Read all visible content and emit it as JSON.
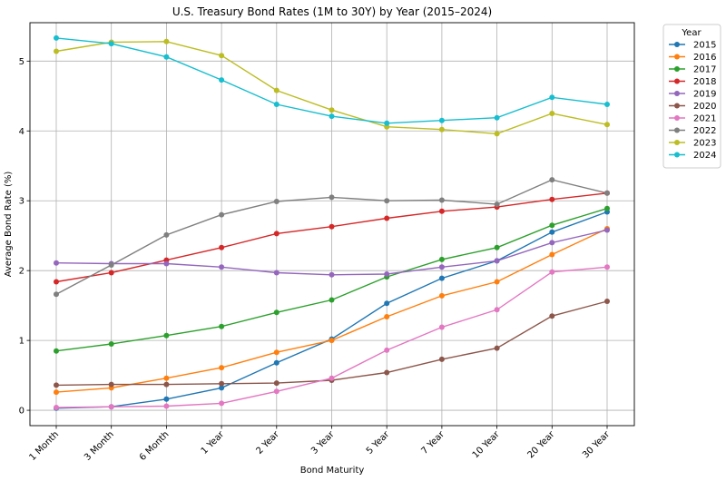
{
  "chart_data": {
    "type": "line",
    "title": "U.S. Treasury Bond Rates (1M to 30Y) by Year (2015–2024)",
    "xlabel": "Bond Maturity",
    "ylabel": "Average Bond Rate (%)",
    "categories": [
      "1 Month",
      "3 Month",
      "6 Month",
      "1 Year",
      "2 Year",
      "3 Year",
      "5 Year",
      "7 Year",
      "10 Year",
      "20 Year",
      "30 Year"
    ],
    "ylim": [
      -0.22,
      5.55
    ],
    "yticks": [
      0,
      1,
      2,
      3,
      4,
      5
    ],
    "grid": true,
    "legend": {
      "title": "Year",
      "placement": "outside-top-right"
    },
    "series": [
      {
        "name": "2015",
        "color": "#1f77b4",
        "values": [
          0.03,
          0.05,
          0.16,
          0.32,
          0.68,
          1.02,
          1.53,
          1.89,
          2.14,
          2.55,
          2.84
        ]
      },
      {
        "name": "2016",
        "color": "#ff7f0e",
        "values": [
          0.26,
          0.32,
          0.46,
          0.61,
          0.83,
          1.0,
          1.34,
          1.64,
          1.84,
          2.23,
          2.6
        ]
      },
      {
        "name": "2017",
        "color": "#2ca02c",
        "values": [
          0.85,
          0.95,
          1.07,
          1.2,
          1.4,
          1.58,
          1.91,
          2.16,
          2.33,
          2.65,
          2.89
        ]
      },
      {
        "name": "2018",
        "color": "#d62728",
        "values": [
          1.84,
          1.97,
          2.15,
          2.33,
          2.53,
          2.63,
          2.75,
          2.85,
          2.91,
          3.02,
          3.11
        ]
      },
      {
        "name": "2019",
        "color": "#9467bd",
        "values": [
          2.11,
          2.1,
          2.1,
          2.05,
          1.97,
          1.94,
          1.95,
          2.05,
          2.14,
          2.4,
          2.58
        ]
      },
      {
        "name": "2020",
        "color": "#8c564b",
        "values": [
          0.36,
          0.37,
          0.37,
          0.38,
          0.39,
          0.43,
          0.54,
          0.73,
          0.89,
          1.35,
          1.56
        ]
      },
      {
        "name": "2021",
        "color": "#e377c2",
        "values": [
          0.04,
          0.05,
          0.06,
          0.1,
          0.27,
          0.46,
          0.86,
          1.19,
          1.44,
          1.98,
          2.05
        ]
      },
      {
        "name": "2022",
        "color": "#7f7f7f",
        "values": [
          1.66,
          2.08,
          2.51,
          2.8,
          2.99,
          3.05,
          3.0,
          3.01,
          2.95,
          3.3,
          3.11
        ]
      },
      {
        "name": "2023",
        "color": "#bcbd22",
        "values": [
          5.14,
          5.27,
          5.28,
          5.08,
          4.58,
          4.3,
          4.06,
          4.02,
          3.96,
          4.25,
          4.09
        ]
      },
      {
        "name": "2024",
        "color": "#17becf",
        "values": [
          5.33,
          5.25,
          5.06,
          4.73,
          4.38,
          4.21,
          4.11,
          4.15,
          4.19,
          4.48,
          4.38
        ]
      }
    ]
  }
}
